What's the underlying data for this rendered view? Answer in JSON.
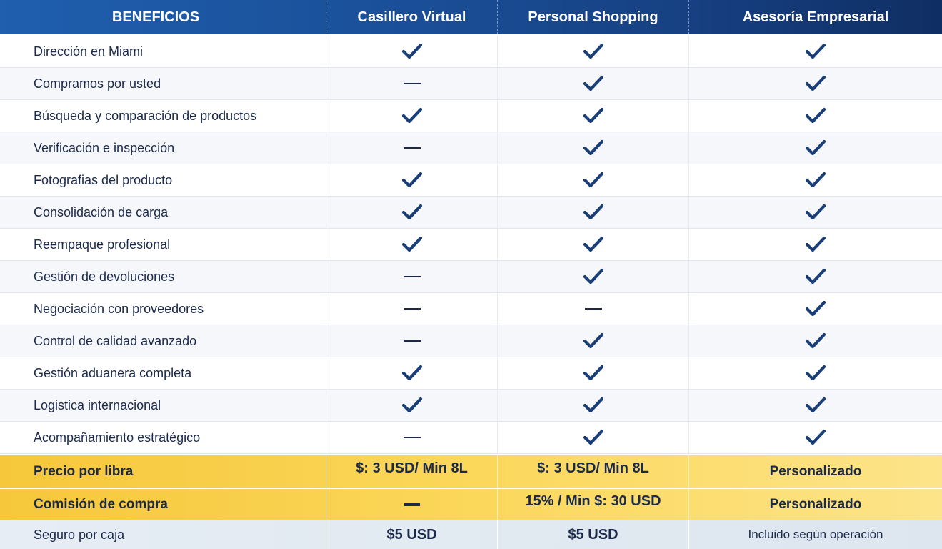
{
  "header": {
    "benefits": "BENEFICIOS",
    "plans": [
      "Casillero Virtual",
      "Personal Shopping",
      "Asesoría Empresarial"
    ]
  },
  "features": [
    {
      "label": "Dirección en Miami",
      "values": [
        "check",
        "check",
        "check"
      ]
    },
    {
      "label": "Compramos por usted",
      "values": [
        "dash",
        "check",
        "check"
      ]
    },
    {
      "label": "Búsqueda y comparación de productos",
      "values": [
        "check",
        "check",
        "check"
      ]
    },
    {
      "label": "Verificación e inspección",
      "values": [
        "dash",
        "check",
        "check"
      ]
    },
    {
      "label": "Fotografias del producto",
      "values": [
        "check",
        "check",
        "check"
      ]
    },
    {
      "label": "Consolidación de carga",
      "values": [
        "check",
        "check",
        "check"
      ]
    },
    {
      "label": "Reempaque profesional",
      "values": [
        "check",
        "check",
        "check"
      ]
    },
    {
      "label": "Gestión de devoluciones",
      "values": [
        "dash",
        "check",
        "check"
      ]
    },
    {
      "label": "Negociación con proveedores",
      "values": [
        "dash",
        "dash",
        "check"
      ]
    },
    {
      "label": "Control de calidad avanzado",
      "values": [
        "dash",
        "check",
        "check"
      ]
    },
    {
      "label": "Gestión aduanera completa",
      "values": [
        "check",
        "check",
        "check"
      ]
    },
    {
      "label": "Logistica internacional",
      "values": [
        "check",
        "check",
        "check"
      ]
    },
    {
      "label": "Acompañamiento estratégico",
      "values": [
        "dash",
        "check",
        "check"
      ]
    }
  ],
  "pricing": {
    "price_per_pound": {
      "label": "Precio por libra",
      "values": [
        "$: 3 USD/ Min 8L",
        "$: 3 USD/ Min 8L",
        "Personalizado"
      ]
    },
    "purchase_commission": {
      "label": "Comisión de compra",
      "values": [
        "—",
        "15% / Min $: 30 USD",
        "Personalizado"
      ]
    },
    "insurance": {
      "label": "Seguro por caja",
      "values": [
        "$5 USD",
        "$5 USD",
        "Incluido según operación"
      ]
    }
  },
  "colors": {
    "header_blue": "#1a4e97",
    "check_navy": "#1a3e78",
    "price_yellow": "#f8cf47",
    "insurance_gray": "#e2e9f1"
  }
}
